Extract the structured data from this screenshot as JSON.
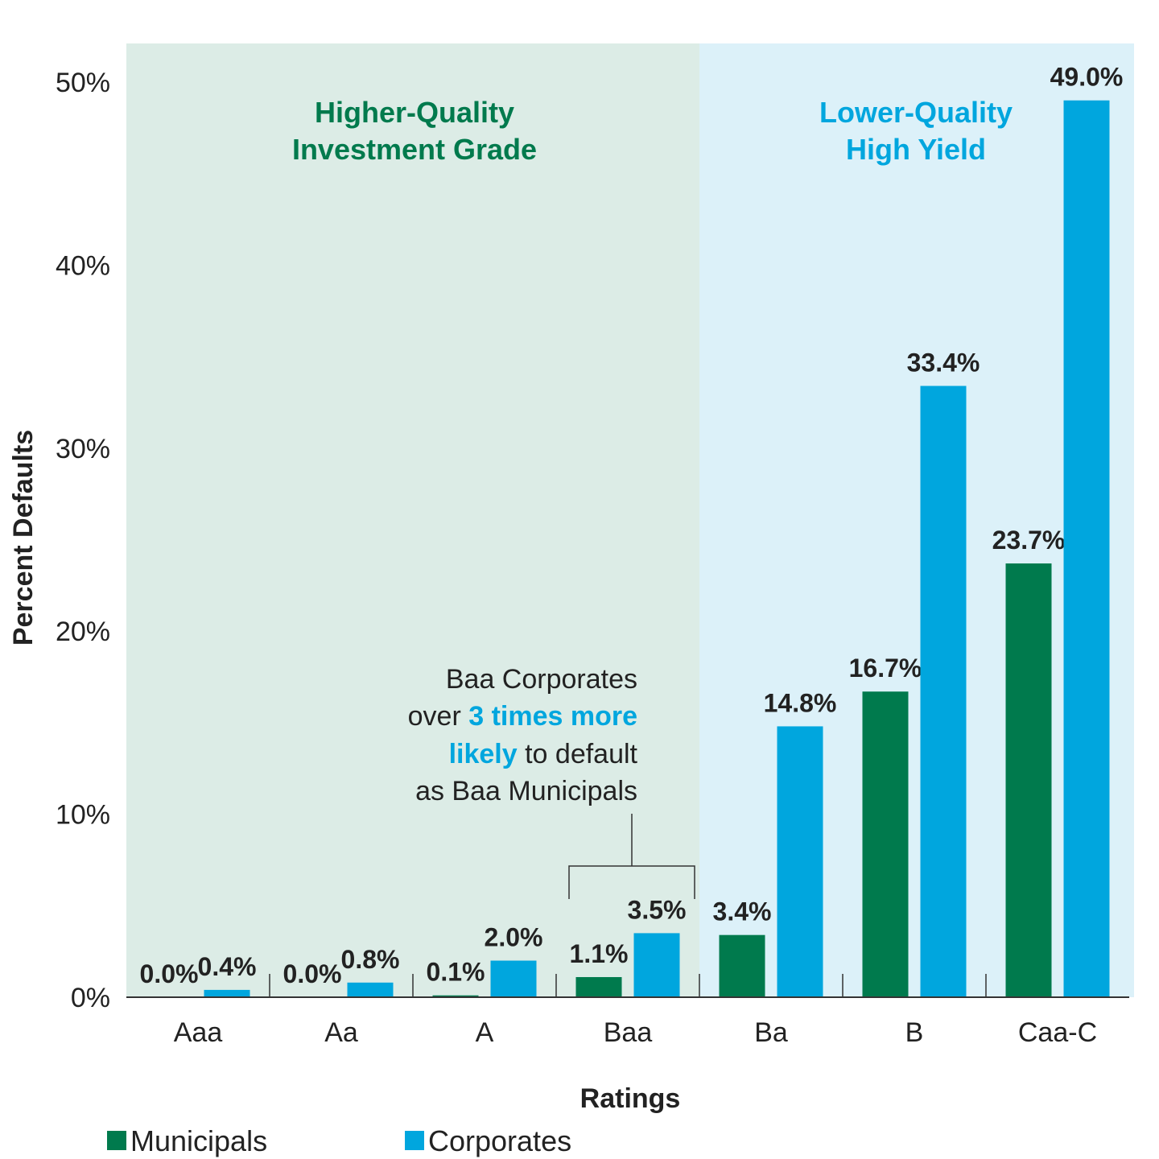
{
  "chart_data": {
    "type": "bar",
    "categories": [
      "Aaa",
      "Aa",
      "A",
      "Baa",
      "Ba",
      "B",
      "Caa-C"
    ],
    "series": [
      {
        "name": "Municipals",
        "values": [
          0.0,
          0.0,
          0.1,
          1.1,
          3.4,
          16.7,
          23.7
        ],
        "labels": [
          "0.0%",
          "0.0%",
          "0.1%",
          "1.1%",
          "3.4%",
          "16.7%",
          "23.7%"
        ]
      },
      {
        "name": "Corporates",
        "values": [
          0.4,
          0.8,
          2.0,
          3.5,
          14.8,
          33.4,
          49.0
        ],
        "labels": [
          "0.4%",
          "0.8%",
          "2.0%",
          "3.5%",
          "14.8%",
          "33.4%",
          "49.0%"
        ]
      }
    ],
    "xlabel": "Ratings",
    "ylabel": "Percent Defaults",
    "ylim": [
      0,
      50
    ],
    "yticks": [
      "0%",
      "10%",
      "20%",
      "30%",
      "40%",
      "50%"
    ],
    "grid": false,
    "legend_position": "bottom-left",
    "regions": [
      {
        "title_line1": "Higher-Quality",
        "title_line2": "Investment Grade",
        "color": "#dcece6",
        "title_color": "#007a4d"
      },
      {
        "title_line1": "Lower-Quality",
        "title_line2": "High Yield",
        "color": "#dcf1f9",
        "title_color": "#00a6de"
      }
    ],
    "annotation": {
      "line1": "Baa Corporates",
      "line2_pre": "over ",
      "line2_hl": "3 times more",
      "line3_hl": "likely",
      "line3_post": " to default",
      "line4": "as Baa Municipals"
    }
  },
  "colors": {
    "municipals": "#007a4d",
    "corporates": "#00a6de",
    "highlight": "#00a6de"
  }
}
